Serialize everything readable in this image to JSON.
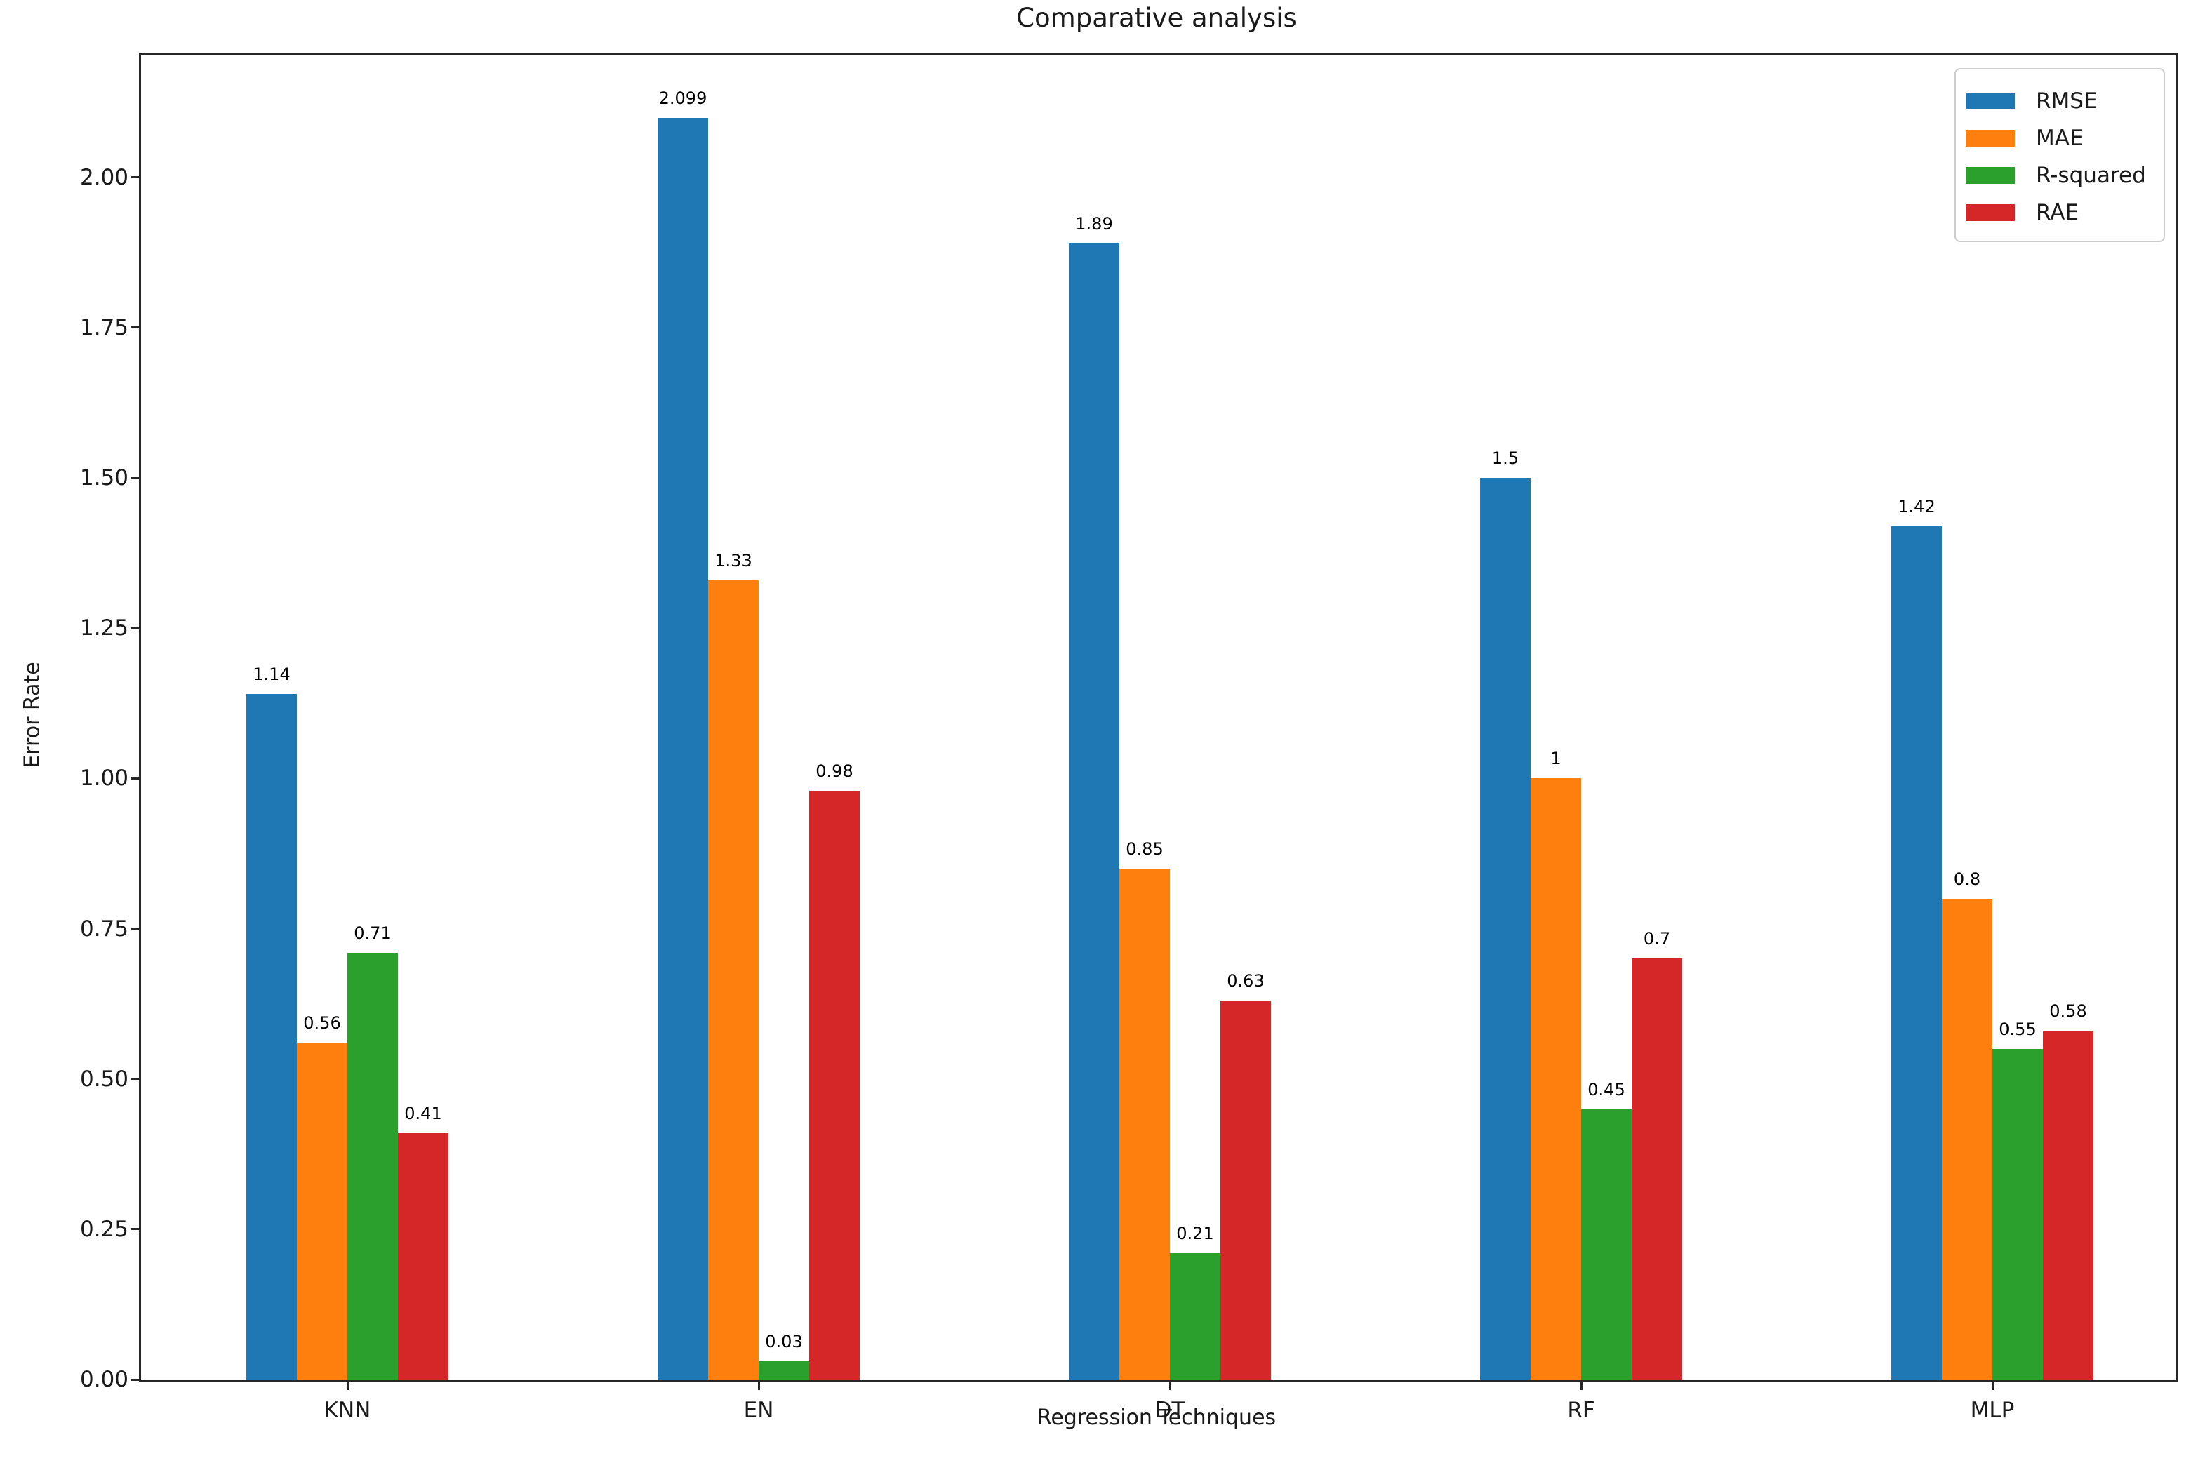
{
  "figure": {
    "background": "#ffffff"
  },
  "chart_data": {
    "type": "bar",
    "title": "Comparative analysis",
    "xlabel": "Regression Techniques",
    "ylabel": "Error Rate",
    "categories": [
      "KNN",
      "EN",
      "DT",
      "RF",
      "MLP"
    ],
    "series": [
      {
        "name": "RMSE",
        "color": "#1f77b4",
        "values": [
          1.14,
          2.099,
          1.89,
          1.5,
          1.42
        ],
        "labels": [
          "1.14",
          "2.099",
          "1.89",
          "1.5",
          "1.42"
        ]
      },
      {
        "name": "MAE",
        "color": "#ff7f0e",
        "values": [
          0.56,
          1.33,
          0.85,
          1.0,
          0.8
        ],
        "labels": [
          "0.56",
          "1.33",
          "0.85",
          "1",
          "0.8"
        ]
      },
      {
        "name": "R-squared",
        "color": "#2ca02c",
        "values": [
          0.71,
          0.03,
          0.21,
          0.45,
          0.55
        ],
        "labels": [
          "0.71",
          "0.03",
          "0.21",
          "0.45",
          "0.55"
        ]
      },
      {
        "name": "RAE",
        "color": "#d62728",
        "values": [
          0.41,
          0.98,
          0.63,
          0.7,
          0.58
        ],
        "labels": [
          "0.41",
          "0.98",
          "0.63",
          "0.7",
          "0.58"
        ]
      }
    ],
    "ylim": [
      0,
      2.204
    ],
    "yticks": [
      "0.00",
      "0.25",
      "0.50",
      "0.75",
      "1.00",
      "1.25",
      "1.50",
      "1.75",
      "2.00"
    ],
    "grid": false,
    "legend_position": "upper right",
    "axis_color": "#262626"
  }
}
